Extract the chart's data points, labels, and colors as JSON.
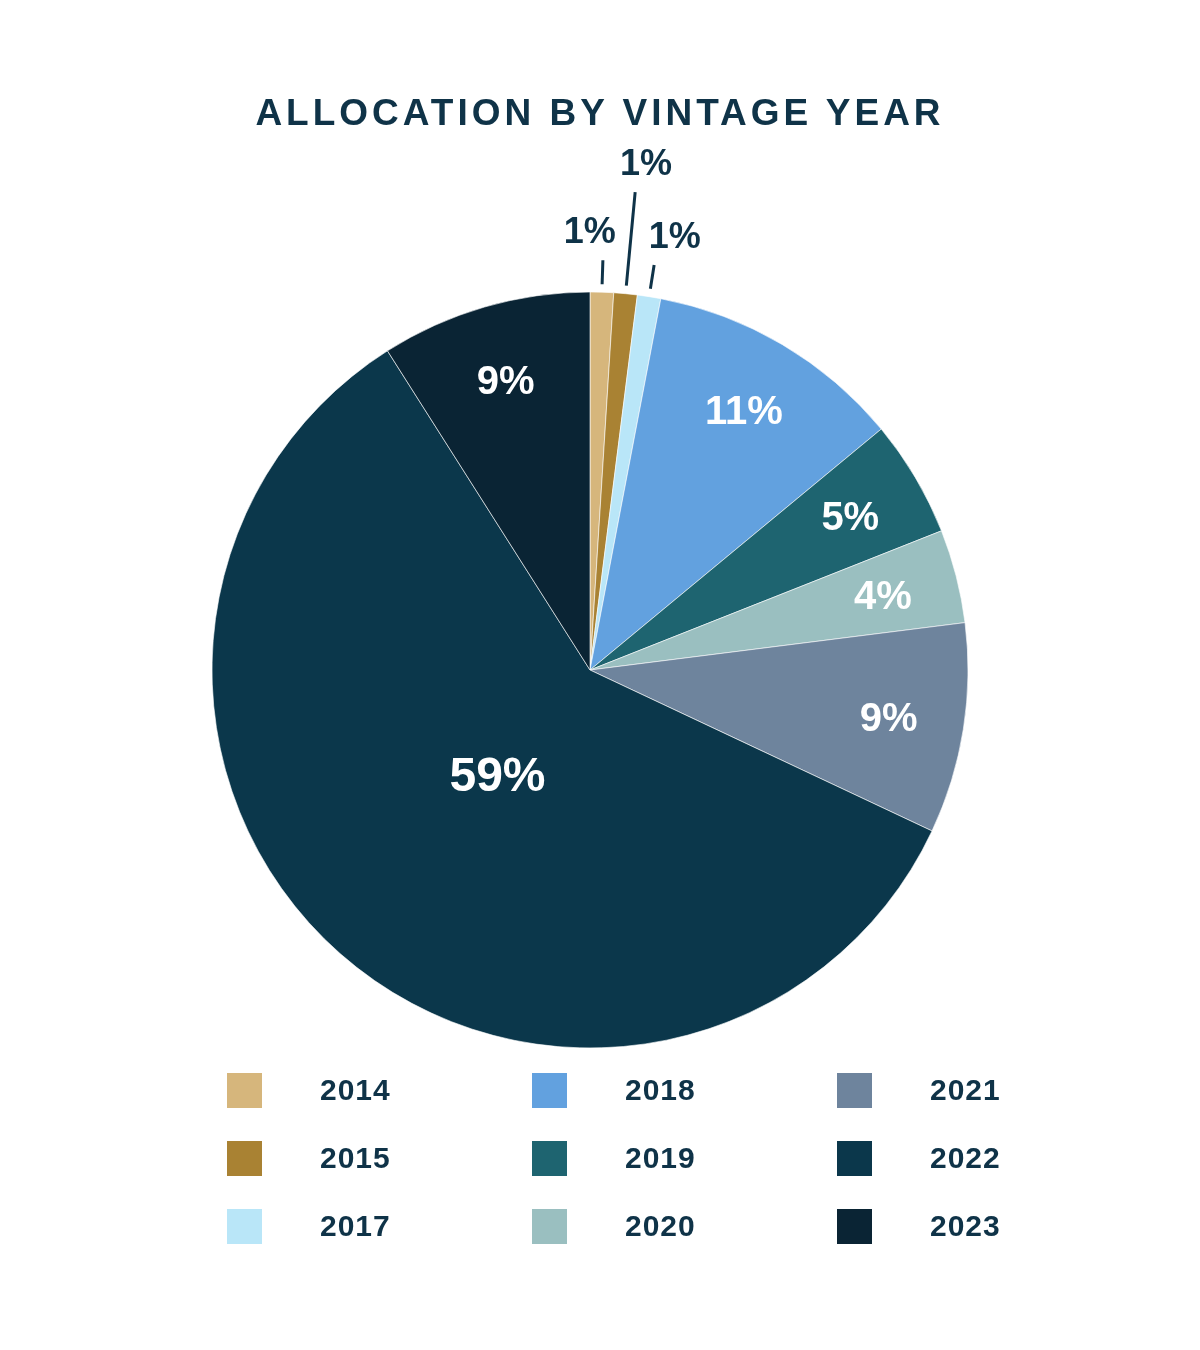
{
  "chart_data": {
    "type": "pie",
    "title": "ALLOCATION BY VINTAGE YEAR",
    "categories": [
      "2014",
      "2015",
      "2017",
      "2018",
      "2019",
      "2020",
      "2021",
      "2022",
      "2023"
    ],
    "values": [
      1,
      1,
      1,
      11,
      5,
      4,
      9,
      59,
      9
    ],
    "value_labels": [
      "1%",
      "1%",
      "1%",
      "11%",
      "5%",
      "4%",
      "9%",
      "59%",
      "9%"
    ],
    "colors": [
      "#d6b67c",
      "#a98233",
      "#b9e6f8",
      "#62a1df",
      "#1e6470",
      "#9abfc0",
      "#6e849d",
      "#0b374b",
      "#0a2434"
    ],
    "legend": "bottom"
  }
}
